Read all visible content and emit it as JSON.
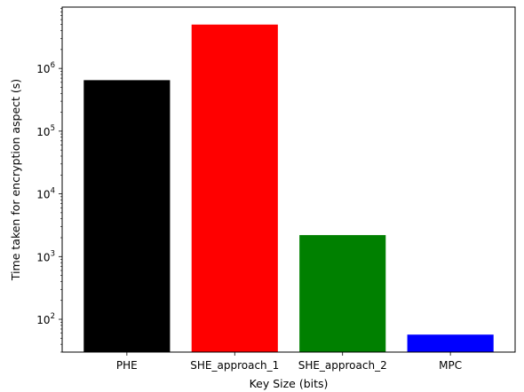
{
  "chart_data": {
    "type": "bar",
    "title": "",
    "xlabel": "Key Size (bits)",
    "ylabel": "Time taken for encryption aspect (s)",
    "yscale": "log",
    "ylim": [
      30,
      9500000
    ],
    "categories": [
      "PHE",
      "SHE_approach_1",
      "SHE_approach_2",
      "MPC"
    ],
    "values": [
      650000,
      5000000,
      2200,
      57
    ],
    "colors": [
      "#000000",
      "#ff0000",
      "#008000",
      "#0000ff"
    ],
    "y_major_ticks": [
      {
        "value": 100,
        "base": "10",
        "exp": "2"
      },
      {
        "value": 1000,
        "base": "10",
        "exp": "3"
      },
      {
        "value": 10000,
        "base": "10",
        "exp": "4"
      },
      {
        "value": 100000,
        "base": "10",
        "exp": "5"
      },
      {
        "value": 1000000,
        "base": "10",
        "exp": "6"
      }
    ],
    "grid": false,
    "legend": "none"
  }
}
